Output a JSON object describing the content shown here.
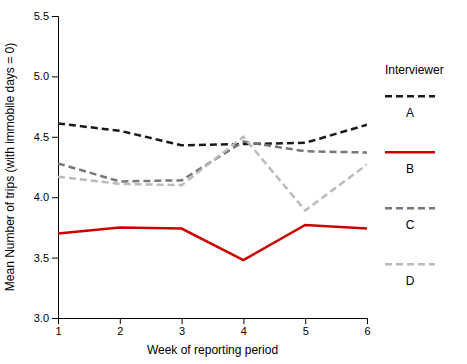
{
  "chart_data": {
    "type": "line",
    "x": [
      1,
      2,
      3,
      4,
      5,
      6
    ],
    "series": [
      {
        "name": "A",
        "color": "#1a1a1a",
        "line_style": "dashed",
        "values": [
          4.61,
          4.55,
          4.43,
          4.44,
          4.45,
          4.6
        ]
      },
      {
        "name": "B",
        "color": "#cc0000",
        "line_style": "solid",
        "values": [
          3.7,
          3.75,
          3.74,
          3.48,
          3.77,
          3.74
        ]
      },
      {
        "name": "C",
        "color": "#777777",
        "line_style": "dashed",
        "values": [
          4.28,
          4.13,
          4.14,
          4.46,
          4.38,
          4.37
        ]
      },
      {
        "name": "D",
        "color": "#bbbbbb",
        "line_style": "dashed",
        "values": [
          4.17,
          4.11,
          4.1,
          4.5,
          3.89,
          4.27
        ]
      }
    ],
    "x_label": "Week of reporting period",
    "y_label": "Mean Number of trips (with immobile days = 0)",
    "legend_title": "Interviewer",
    "legend": "right",
    "grid": false,
    "xlim": [
      1,
      6
    ],
    "ylim": [
      3.0,
      5.5
    ],
    "xticks": [
      1,
      2,
      3,
      4,
      5,
      6
    ],
    "yticks": [
      {
        "value": 3.0,
        "label": "3.0"
      },
      3.5,
      {
        "value": 4.0,
        "label": "4.0"
      },
      4.5,
      {
        "value": 5.0,
        "label": "5.0"
      },
      5.5
    ]
  }
}
